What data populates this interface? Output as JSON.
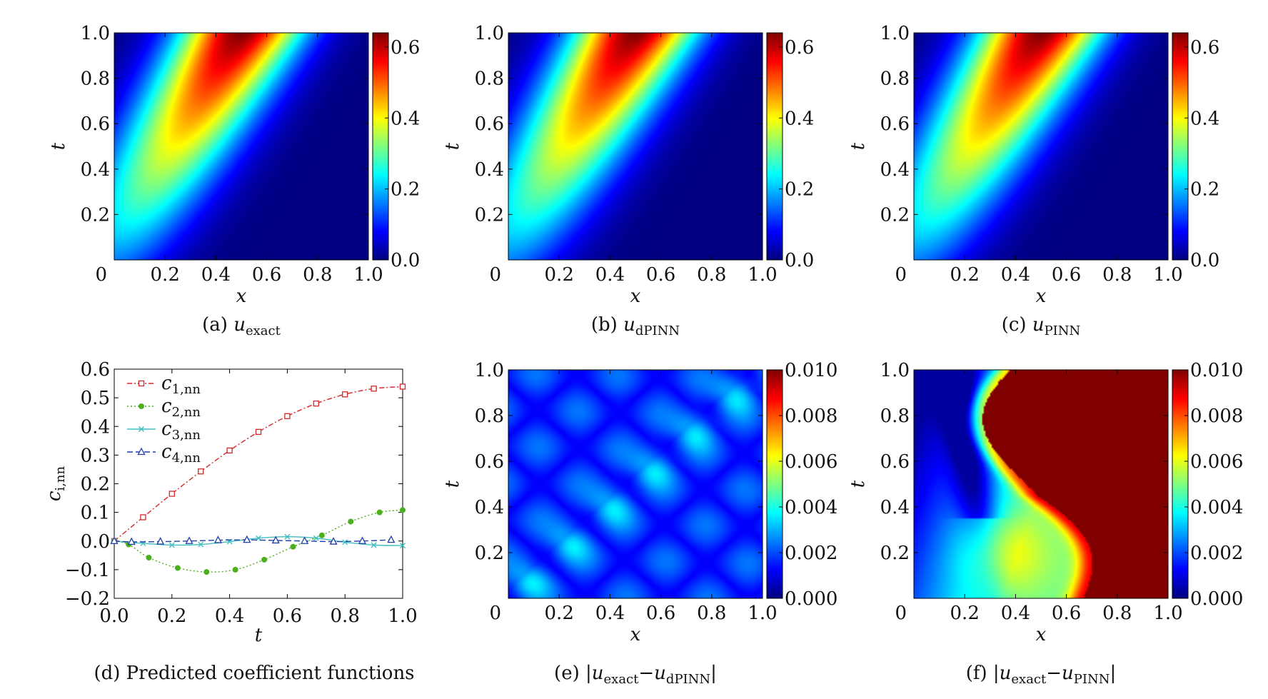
{
  "chart_data": [
    {
      "type": "heatmap",
      "id": "a",
      "caption_prefix": "(a)",
      "caption_symbol": "u",
      "caption_sub": "exact",
      "xlabel": "x",
      "ylabel": "t",
      "xlim": [
        0,
        1
      ],
      "ylim": [
        0,
        1
      ],
      "xticks": [
        "0",
        "0.2",
        "0.4",
        "0.6",
        "0.8",
        "1.0"
      ],
      "yticks": [
        "0.2",
        "0.4",
        "0.6",
        "0.8",
        "1.0"
      ],
      "colorbar": {
        "range": [
          0,
          0.64
        ],
        "ticks": [
          "0.0",
          "0.2",
          "0.4",
          "0.6"
        ],
        "tick_values": [
          0,
          0.2,
          0.4,
          0.6
        ]
      },
      "colormap": "jet",
      "pattern": "diagonal-band",
      "max_value": 0.64
    },
    {
      "type": "heatmap",
      "id": "b",
      "caption_prefix": "(b)",
      "caption_symbol": "u",
      "caption_sub": "dPINN",
      "xlabel": "x",
      "ylabel": "t",
      "xlim": [
        0,
        1
      ],
      "ylim": [
        0,
        1
      ],
      "xticks": [
        "0",
        "0.2",
        "0.4",
        "0.6",
        "0.8",
        "1.0"
      ],
      "yticks": [
        "0.2",
        "0.4",
        "0.6",
        "0.8",
        "1.0"
      ],
      "colorbar": {
        "range": [
          0,
          0.64
        ],
        "ticks": [
          "0.0",
          "0.2",
          "0.4",
          "0.6"
        ],
        "tick_values": [
          0,
          0.2,
          0.4,
          0.6
        ]
      },
      "colormap": "jet",
      "pattern": "diagonal-band",
      "max_value": 0.64
    },
    {
      "type": "heatmap",
      "id": "c",
      "caption_prefix": "(c)",
      "caption_symbol": "u",
      "caption_sub": "PINN",
      "xlabel": "x",
      "ylabel": "t",
      "xlim": [
        0,
        1
      ],
      "ylim": [
        0,
        1
      ],
      "xticks": [
        "0",
        "0.2",
        "0.4",
        "0.6",
        "0.8",
        "1.0"
      ],
      "yticks": [
        "0.2",
        "0.4",
        "0.6",
        "0.8",
        "1.0"
      ],
      "colorbar": {
        "range": [
          0,
          0.64
        ],
        "ticks": [
          "0.0",
          "0.2",
          "0.4",
          "0.6"
        ],
        "tick_values": [
          0,
          0.2,
          0.4,
          0.6
        ]
      },
      "colormap": "jet",
      "pattern": "diagonal-band",
      "max_value": 0.64
    },
    {
      "type": "line",
      "id": "d",
      "caption": "(d) Predicted coefficient functions",
      "xlabel": "t",
      "ylabel_symbol": "c",
      "ylabel_sub": "i,nn",
      "xlim": [
        0,
        1
      ],
      "ylim": [
        -0.2,
        0.6
      ],
      "xticks": [
        0,
        0.2,
        0.4,
        0.6,
        0.8,
        1.0
      ],
      "xtick_labels": [
        "0.0",
        "0.2",
        "0.4",
        "0.6",
        "0.8",
        "1.0"
      ],
      "yticks": [
        -0.2,
        -0.1,
        0,
        0.1,
        0.2,
        0.3,
        0.4,
        0.5,
        0.6
      ],
      "ytick_labels": [
        "−0.2",
        "−0.1",
        "0.0",
        "0.1",
        "0.2",
        "0.3",
        "0.4",
        "0.5",
        "0.6"
      ],
      "legend_position": "top-left",
      "series": [
        {
          "name_symbol": "c",
          "name_sub": "1,nn",
          "color": "#d62728",
          "marker": "square",
          "dash": "7,3,2,3",
          "x": [
            0,
            0.1,
            0.2,
            0.3,
            0.4,
            0.5,
            0.6,
            0.7,
            0.8,
            0.9,
            1.0
          ],
          "y": [
            0,
            0.083,
            0.165,
            0.243,
            0.316,
            0.381,
            0.436,
            0.48,
            0.512,
            0.532,
            0.539
          ]
        },
        {
          "name_symbol": "c",
          "name_sub": "2,nn",
          "color": "#4caf1e",
          "marker": "dot",
          "dash": "2,3",
          "x": [
            0,
            0.05,
            0.12,
            0.22,
            0.32,
            0.42,
            0.52,
            0.62,
            0.72,
            0.82,
            0.92,
            1.0
          ],
          "y": [
            0,
            -0.012,
            -0.058,
            -0.094,
            -0.108,
            -0.1,
            -0.065,
            -0.02,
            0.02,
            0.068,
            0.1,
            0.108
          ]
        },
        {
          "name_symbol": "c",
          "name_sub": "3,nn",
          "color": "#3fbfbf",
          "marker": "x",
          "dash": "",
          "x": [
            0,
            0.1,
            0.2,
            0.3,
            0.4,
            0.5,
            0.6,
            0.7,
            0.8,
            0.9,
            1.0
          ],
          "y": [
            0,
            -0.008,
            -0.014,
            -0.012,
            -0.002,
            0.01,
            0.015,
            0.01,
            -0.004,
            -0.014,
            -0.016
          ]
        },
        {
          "name_symbol": "c",
          "name_sub": "4,nn",
          "color": "#1f3fa8",
          "marker": "triangle",
          "dash": "8,4",
          "x": [
            0,
            0.06,
            0.16,
            0.26,
            0.36,
            0.46,
            0.56,
            0.66,
            0.76,
            0.86,
            0.96
          ],
          "y": [
            0,
            -0.003,
            -0.002,
            0.0,
            0.003,
            0.004,
            0.002,
            0.0,
            -0.002,
            0.0,
            0.004
          ]
        }
      ]
    },
    {
      "type": "heatmap",
      "id": "e",
      "caption_prefix": "(e)",
      "caption_abs": true,
      "caption_a_sub": "exact",
      "caption_b_sub": "dPINN",
      "xlabel": "x",
      "ylabel": "t",
      "xlim": [
        0,
        1
      ],
      "ylim": [
        0,
        1
      ],
      "xticks": [
        "0",
        "0.2",
        "0.4",
        "0.6",
        "0.8",
        "1.0"
      ],
      "yticks": [
        "0.2",
        "0.4",
        "0.6",
        "0.8",
        "1.0"
      ],
      "colorbar": {
        "range": [
          0,
          0.01
        ],
        "ticks": [
          "0.000",
          "0.002",
          "0.004",
          "0.006",
          "0.008",
          "0.010"
        ],
        "tick_values": [
          0,
          0.002,
          0.004,
          0.006,
          0.008,
          0.01
        ]
      },
      "colormap": "jet",
      "pattern": "checker-error"
    },
    {
      "type": "heatmap",
      "id": "f",
      "caption_prefix": "(f)",
      "caption_abs": true,
      "caption_a_sub": "exact",
      "caption_b_sub": "PINN",
      "xlabel": "x",
      "ylabel": "t",
      "xlim": [
        0,
        1
      ],
      "ylim": [
        0,
        1
      ],
      "xticks": [
        "0",
        "0.2",
        "0.4",
        "0.6",
        "0.8",
        "1.0"
      ],
      "yticks": [
        "0.2",
        "0.4",
        "0.6",
        "0.8",
        "1.0"
      ],
      "colorbar": {
        "range": [
          0,
          0.01
        ],
        "ticks": [
          "0.000",
          "0.002",
          "0.004",
          "0.006",
          "0.008",
          "0.010"
        ],
        "tick_values": [
          0,
          0.002,
          0.004,
          0.006,
          0.008,
          0.01
        ]
      },
      "colormap": "jet",
      "pattern": "pinn-error"
    }
  ]
}
